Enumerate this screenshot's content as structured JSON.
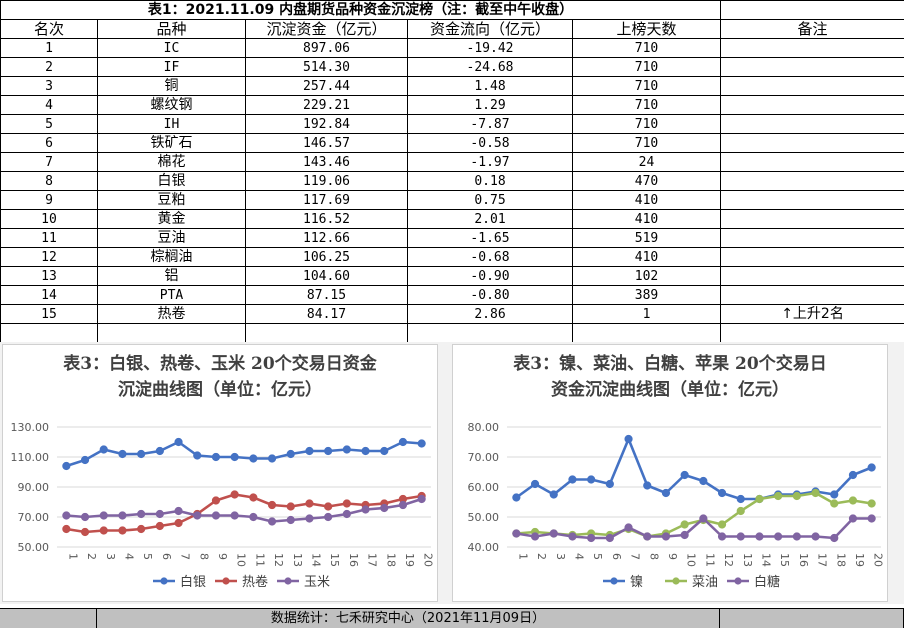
{
  "table": {
    "title": "表1：2021.11.09 内盘期货品种资金沉淀榜（注：截至中午收盘）",
    "headers": [
      "名次",
      "品种",
      "沉淀资金（亿元）",
      "资金流向（亿元）",
      "上榜天数",
      "备注"
    ],
    "rows": [
      {
        "rank": "1",
        "name": "IC",
        "fund": "897.06",
        "flow": "-19.42",
        "days": "710",
        "note": ""
      },
      {
        "rank": "2",
        "name": "IF",
        "fund": "514.30",
        "flow": "-24.68",
        "days": "710",
        "note": ""
      },
      {
        "rank": "3",
        "name": "铜",
        "fund": "257.44",
        "flow": "1.48",
        "days": "710",
        "note": ""
      },
      {
        "rank": "4",
        "name": "螺纹钢",
        "fund": "229.21",
        "flow": "1.29",
        "days": "710",
        "note": ""
      },
      {
        "rank": "5",
        "name": "IH",
        "fund": "192.84",
        "flow": "-7.87",
        "days": "710",
        "note": ""
      },
      {
        "rank": "6",
        "name": "铁矿石",
        "fund": "146.57",
        "flow": "-0.58",
        "days": "710",
        "note": ""
      },
      {
        "rank": "7",
        "name": "棉花",
        "fund": "143.46",
        "flow": "-1.97",
        "days": "24",
        "note": ""
      },
      {
        "rank": "8",
        "name": "白银",
        "fund": "119.06",
        "flow": "0.18",
        "days": "470",
        "note": ""
      },
      {
        "rank": "9",
        "name": "豆粕",
        "fund": "117.69",
        "flow": "0.75",
        "days": "410",
        "note": ""
      },
      {
        "rank": "10",
        "name": "黄金",
        "fund": "116.52",
        "flow": "2.01",
        "days": "410",
        "note": ""
      },
      {
        "rank": "11",
        "name": "豆油",
        "fund": "112.66",
        "flow": "-1.65",
        "days": "519",
        "note": ""
      },
      {
        "rank": "12",
        "name": "棕榈油",
        "fund": "106.25",
        "flow": "-0.68",
        "days": "410",
        "note": ""
      },
      {
        "rank": "13",
        "name": "铝",
        "fund": "104.60",
        "flow": "-0.90",
        "days": "102",
        "note": ""
      },
      {
        "rank": "14",
        "name": "PTA",
        "fund": "87.15",
        "flow": "-0.80",
        "days": "389",
        "note": ""
      },
      {
        "rank": "15",
        "name": "热卷",
        "fund": "84.17",
        "flow": "2.86",
        "days": "1",
        "note": "↑上升2名"
      }
    ]
  },
  "chart_data": [
    {
      "type": "line",
      "title": "表3：白银、热卷、玉米 20个交易日资金沉淀曲线图（单位：亿元）",
      "title_lines": [
        "表3：白银、热卷、玉米 20个交易日资金",
        "沉淀曲线图（单位：亿元）"
      ],
      "categories": [
        "1",
        "2",
        "3",
        "4",
        "5",
        "6",
        "7",
        "8",
        "9",
        "10",
        "11",
        "12",
        "13",
        "14",
        "15",
        "16",
        "17",
        "18",
        "19",
        "20"
      ],
      "ylim": [
        50,
        130
      ],
      "yticks": [
        "50.00",
        "70.00",
        "90.00",
        "110.00",
        "130.00"
      ],
      "grid": true,
      "legend": "bottom",
      "series": [
        {
          "name": "白银",
          "color": "#4472c4",
          "values": [
            104,
            108,
            115,
            112,
            112,
            114,
            120,
            111,
            110,
            110,
            109,
            109,
            112,
            114,
            114,
            115,
            114,
            114,
            120,
            119
          ]
        },
        {
          "name": "热卷",
          "color": "#c0504d",
          "values": [
            62,
            60,
            61,
            61,
            62,
            64,
            66,
            72,
            81,
            85,
            83,
            78,
            77,
            79,
            77,
            79,
            78,
            79,
            82,
            84
          ]
        },
        {
          "name": "玉米",
          "color": "#8064a2",
          "values": [
            71,
            70,
            71,
            71,
            72,
            72,
            74,
            71,
            71,
            71,
            70,
            67,
            68,
            69,
            70,
            72,
            75,
            76,
            78,
            82
          ]
        }
      ]
    },
    {
      "type": "line",
      "title": "表3：镍、菜油、白糖、苹果 20个交易日资金沉淀曲线图（单位：亿元）",
      "title_lines": [
        "表3：镍、菜油、白糖、苹果 20个交易日",
        "资金沉淀曲线图（单位：亿元）"
      ],
      "categories": [
        "1",
        "2",
        "3",
        "4",
        "5",
        "6",
        "7",
        "8",
        "9",
        "10",
        "11",
        "12",
        "13",
        "14",
        "15",
        "16",
        "17",
        "18",
        "19",
        "20"
      ],
      "ylim": [
        40,
        80
      ],
      "yticks": [
        "40.00",
        "50.00",
        "60.00",
        "70.00",
        "80.00"
      ],
      "grid": true,
      "legend": "bottom",
      "series": [
        {
          "name": "镍",
          "color": "#4472c4",
          "values": [
            56.5,
            61,
            57.5,
            62.5,
            62.5,
            61,
            76,
            60.5,
            58,
            64,
            62,
            58,
            56,
            56,
            57.5,
            57.5,
            58.5,
            57.5,
            64,
            66.5
          ]
        },
        {
          "name": "菜油",
          "color": "#9bbb59",
          "values": [
            44.5,
            45,
            44.5,
            44,
            44.5,
            44,
            46,
            43.5,
            44.5,
            47.5,
            49,
            47.5,
            52,
            56,
            57,
            57,
            58,
            54.5,
            55.5,
            54.5
          ]
        },
        {
          "name": "白糖",
          "color": "#8064a2",
          "values": [
            44.5,
            43.5,
            44.5,
            43.5,
            43,
            43,
            46.5,
            43.5,
            43.5,
            44,
            49.5,
            43.5,
            43.5,
            43.5,
            43.5,
            43.5,
            43.5,
            43,
            49.5,
            49.5
          ]
        }
      ]
    }
  ],
  "footer": {
    "source": "数据统计：七禾研究中心（2021年11月09日）"
  }
}
